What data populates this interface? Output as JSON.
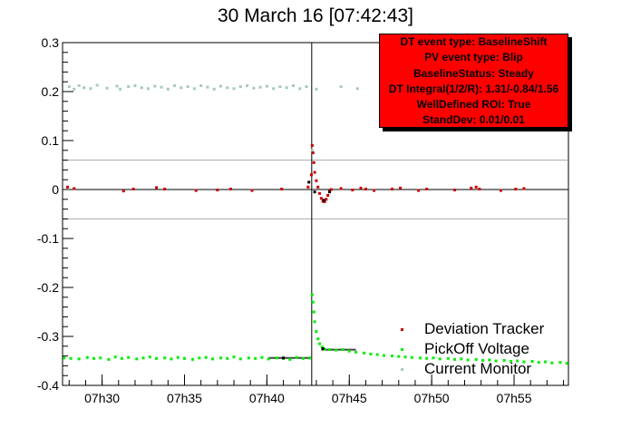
{
  "title": "30 March 16 [07:42:43]",
  "info_box": {
    "lines": [
      "DT event type: BaselineShift",
      "PV event type: Blip",
      "BaselineStatus: Steady",
      "DT Integral(1/2/R): 1.31/-0.84/1.56",
      "WellDefined ROI: True",
      "StandDev: 0.01/0.01"
    ],
    "background": "#ff0000"
  },
  "legend": [
    {
      "label": "Deviation Tracker",
      "color": "#cc0000"
    },
    {
      "label": "PickOff Voltage",
      "color": "#00ee00"
    },
    {
      "label": "Current Monitor",
      "color": "#a8c8c0"
    }
  ],
  "chart_data": {
    "type": "scatter",
    "title": "30 March 16 [07:42:43]",
    "xlabel": "",
    "ylabel": "",
    "xlim": [
      "07h27.6",
      "07h58.3"
    ],
    "ylim": [
      -0.4,
      0.3
    ],
    "x_ticks": [
      "07h30",
      "07h35",
      "07h40",
      "07h45",
      "07h50",
      "07h55"
    ],
    "y_ticks": [
      "0.3",
      "0.2",
      "0.1",
      "0",
      "-0.1",
      "-0.2",
      "-0.3",
      "-0.4"
    ],
    "event_time_min": 42.72,
    "reference_lines": [
      {
        "y": 0.06,
        "color": "#aaaaaa"
      },
      {
        "y": 0,
        "color": "#000000"
      },
      {
        "y": -0.06,
        "color": "#aaaaaa"
      }
    ],
    "baseline_segments": [
      {
        "x": [
          40.1,
          42.6
        ],
        "y": -0.344
      },
      {
        "x": [
          43.3,
          45.4
        ],
        "y": -0.327
      }
    ],
    "series": [
      {
        "name": "Deviation Tracker",
        "color": "#cc0000",
        "points": [
          [
            27.9,
            0.005
          ],
          [
            28.3,
            0.002
          ],
          [
            31.3,
            -0.003
          ],
          [
            31.9,
            0.001
          ],
          [
            33.3,
            0.004
          ],
          [
            33.8,
            0.001
          ],
          [
            35.7,
            -0.002
          ],
          [
            37.0,
            -0.001
          ],
          [
            37.8,
            0.001
          ],
          [
            39.1,
            -0.002
          ],
          [
            40.9,
            0.001
          ],
          [
            42.5,
            0.005
          ],
          [
            42.7,
            0.03
          ],
          [
            42.75,
            0.09
          ],
          [
            42.8,
            0.075
          ],
          [
            42.85,
            0.055
          ],
          [
            42.9,
            0.035
          ],
          [
            43.0,
            0.018
          ],
          [
            43.1,
            0.005
          ],
          [
            43.2,
            -0.008
          ],
          [
            43.3,
            -0.018
          ],
          [
            43.4,
            -0.024
          ],
          [
            43.5,
            -0.025
          ],
          [
            43.6,
            -0.02
          ],
          [
            43.7,
            -0.012
          ],
          [
            43.8,
            -0.004
          ],
          [
            43.9,
            0.0
          ],
          [
            44.5,
            0.002
          ],
          [
            45.2,
            -0.001
          ],
          [
            45.7,
            0.003
          ],
          [
            46.0,
            0.001
          ],
          [
            46.5,
            -0.002
          ],
          [
            47.6,
            0.001
          ],
          [
            48.1,
            0.003
          ],
          [
            49.2,
            -0.002
          ],
          [
            49.7,
            0.001
          ],
          [
            51.4,
            -0.001
          ],
          [
            52.4,
            0.003
          ],
          [
            52.7,
            0.005
          ],
          [
            52.9,
            0.001
          ],
          [
            54.2,
            -0.002
          ],
          [
            55.1,
            0.001
          ],
          [
            55.6,
            0.002
          ]
        ]
      },
      {
        "name": "PickOff Voltage",
        "color": "#00ee00",
        "points": [
          [
            27.7,
            -0.344
          ],
          [
            28.1,
            -0.345
          ],
          [
            28.6,
            -0.346
          ],
          [
            29.1,
            -0.343
          ],
          [
            29.5,
            -0.345
          ],
          [
            29.9,
            -0.344
          ],
          [
            30.4,
            -0.347
          ],
          [
            30.8,
            -0.342
          ],
          [
            31.2,
            -0.345
          ],
          [
            31.6,
            -0.343
          ],
          [
            32.1,
            -0.346
          ],
          [
            32.5,
            -0.344
          ],
          [
            32.9,
            -0.342
          ],
          [
            33.3,
            -0.345
          ],
          [
            33.8,
            -0.344
          ],
          [
            34.2,
            -0.346
          ],
          [
            34.6,
            -0.343
          ],
          [
            35.0,
            -0.345
          ],
          [
            35.5,
            -0.347
          ],
          [
            35.9,
            -0.344
          ],
          [
            36.3,
            -0.343
          ],
          [
            36.7,
            -0.346
          ],
          [
            37.2,
            -0.344
          ],
          [
            37.6,
            -0.345
          ],
          [
            38.0,
            -0.342
          ],
          [
            38.4,
            -0.346
          ],
          [
            38.9,
            -0.344
          ],
          [
            39.3,
            -0.345
          ],
          [
            39.7,
            -0.343
          ],
          [
            40.1,
            -0.346
          ],
          [
            40.6,
            -0.344
          ],
          [
            41.0,
            -0.345
          ],
          [
            41.4,
            -0.347
          ],
          [
            41.8,
            -0.343
          ],
          [
            42.2,
            -0.345
          ],
          [
            42.6,
            -0.344
          ],
          [
            42.75,
            -0.215
          ],
          [
            42.8,
            -0.23
          ],
          [
            42.85,
            -0.25
          ],
          [
            42.9,
            -0.27
          ],
          [
            43.0,
            -0.29
          ],
          [
            43.1,
            -0.305
          ],
          [
            43.2,
            -0.315
          ],
          [
            43.35,
            -0.322
          ],
          [
            43.5,
            -0.326
          ],
          [
            43.8,
            -0.327
          ],
          [
            44.2,
            -0.328
          ],
          [
            44.6,
            -0.327
          ],
          [
            45.0,
            -0.33
          ],
          [
            45.4,
            -0.332
          ],
          [
            45.9,
            -0.334
          ],
          [
            46.3,
            -0.336
          ],
          [
            46.7,
            -0.337
          ],
          [
            47.1,
            -0.339
          ],
          [
            47.6,
            -0.34
          ],
          [
            48.0,
            -0.341
          ],
          [
            48.4,
            -0.342
          ],
          [
            48.8,
            -0.343
          ],
          [
            49.3,
            -0.344
          ],
          [
            49.7,
            -0.345
          ],
          [
            50.1,
            -0.344
          ],
          [
            50.5,
            -0.346
          ],
          [
            51.0,
            -0.345
          ],
          [
            51.4,
            -0.347
          ],
          [
            51.8,
            -0.346
          ],
          [
            52.2,
            -0.348
          ],
          [
            52.7,
            -0.347
          ],
          [
            53.1,
            -0.349
          ],
          [
            53.5,
            -0.348
          ],
          [
            53.9,
            -0.35
          ],
          [
            54.4,
            -0.349
          ],
          [
            54.8,
            -0.351
          ],
          [
            55.2,
            -0.35
          ],
          [
            55.6,
            -0.352
          ],
          [
            56.1,
            -0.351
          ],
          [
            56.5,
            -0.353
          ],
          [
            56.9,
            -0.352
          ],
          [
            57.3,
            -0.354
          ],
          [
            57.8,
            -0.353
          ],
          [
            58.2,
            -0.355
          ]
        ]
      },
      {
        "name": "Current Monitor",
        "color": "#a8c8c0",
        "points": [
          [
            28.0,
            0.21
          ],
          [
            28.3,
            0.205
          ],
          [
            28.6,
            0.212
          ],
          [
            28.9,
            0.208
          ],
          [
            29.3,
            0.206
          ],
          [
            29.7,
            0.213
          ],
          [
            30.3,
            0.207
          ],
          [
            30.9,
            0.211
          ],
          [
            31.1,
            0.205
          ],
          [
            31.6,
            0.21
          ],
          [
            32.0,
            0.212
          ],
          [
            32.4,
            0.208
          ],
          [
            32.8,
            0.206
          ],
          [
            33.2,
            0.211
          ],
          [
            33.6,
            0.209
          ],
          [
            34.0,
            0.205
          ],
          [
            34.4,
            0.212
          ],
          [
            34.8,
            0.208
          ],
          [
            35.2,
            0.21
          ],
          [
            35.6,
            0.206
          ],
          [
            36.0,
            0.212
          ],
          [
            36.4,
            0.209
          ],
          [
            36.8,
            0.205
          ],
          [
            37.2,
            0.211
          ],
          [
            37.6,
            0.208
          ],
          [
            38.0,
            0.206
          ],
          [
            38.4,
            0.21
          ],
          [
            38.8,
            0.212
          ],
          [
            39.2,
            0.207
          ],
          [
            39.6,
            0.209
          ],
          [
            40.0,
            0.211
          ],
          [
            40.4,
            0.206
          ],
          [
            40.8,
            0.21
          ],
          [
            41.2,
            0.208
          ],
          [
            41.6,
            0.212
          ],
          [
            42.0,
            0.206
          ],
          [
            42.4,
            0.21
          ],
          [
            42.75,
            0.08
          ],
          [
            43.0,
            0.205
          ],
          [
            44.5,
            0.21
          ],
          [
            45.5,
            0.206
          ]
        ]
      }
    ]
  }
}
